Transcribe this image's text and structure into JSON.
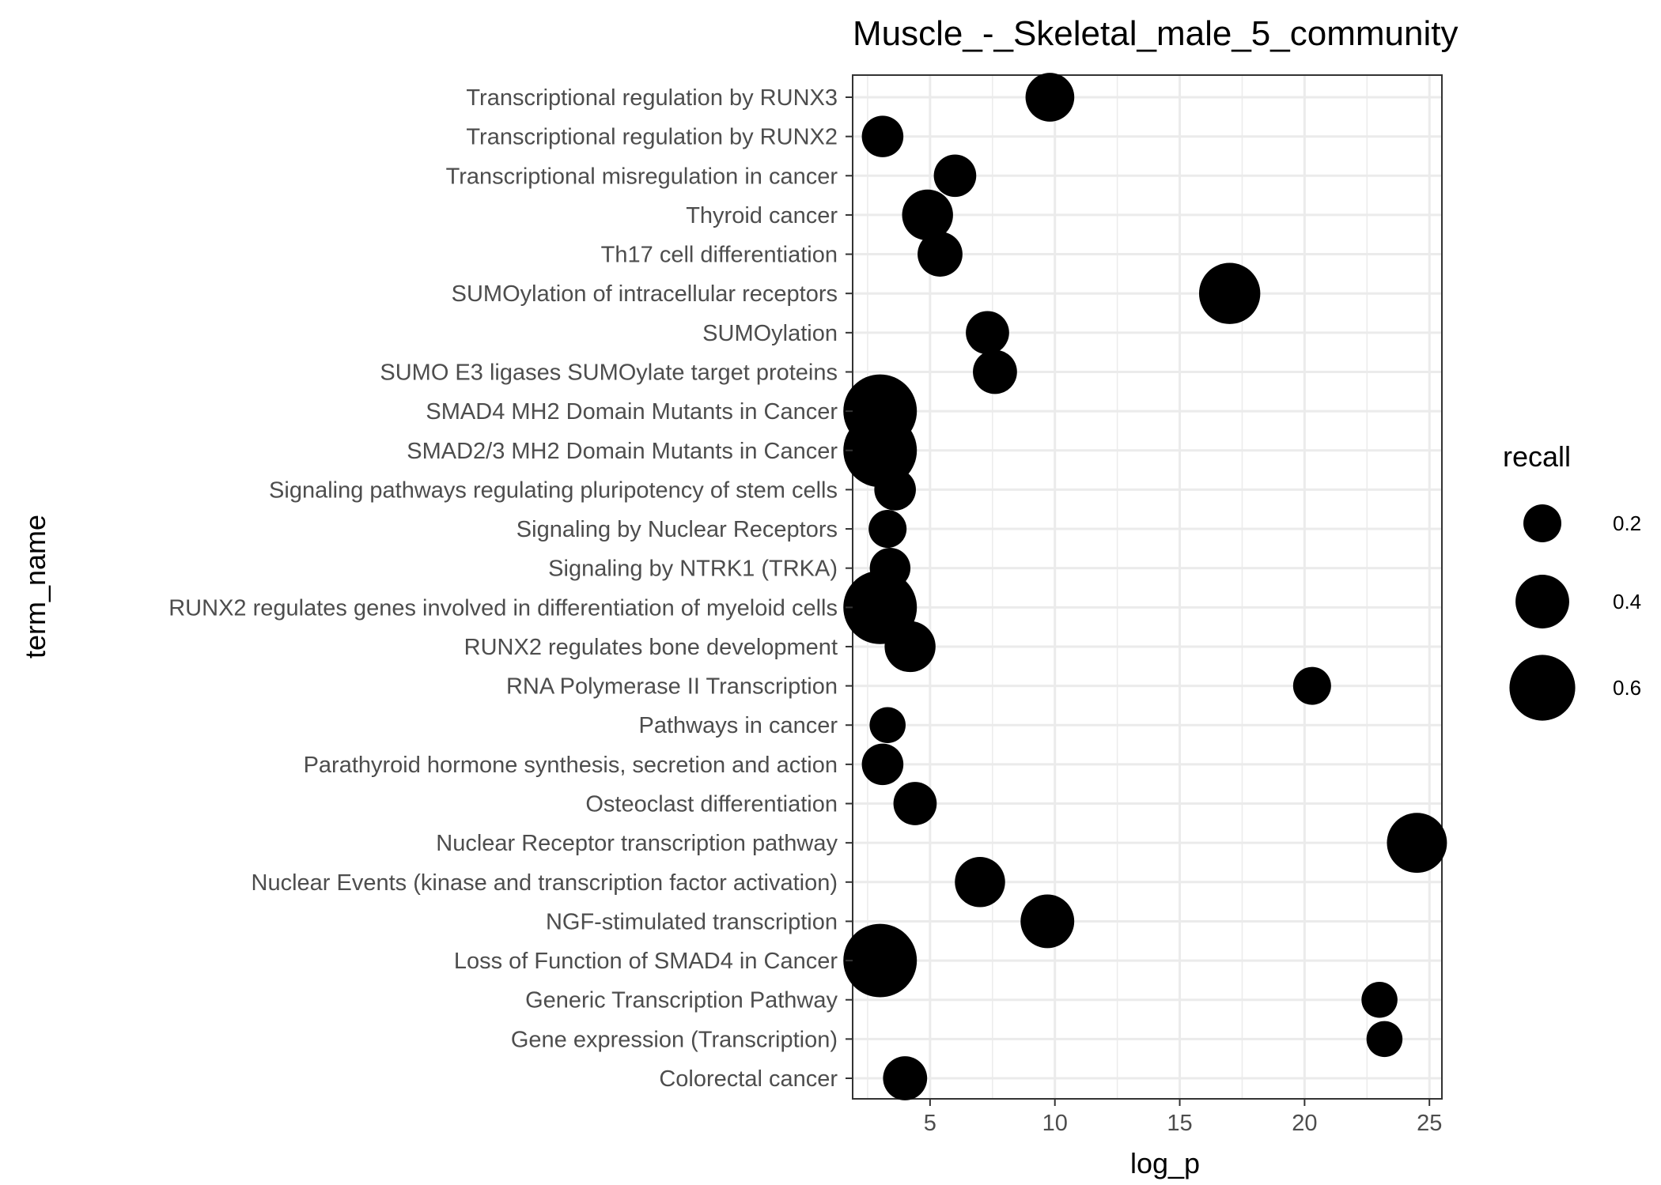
{
  "chart_data": {
    "type": "scatter",
    "title": "Muscle_-_Skeletal_male_5_community",
    "xlabel": "log_p",
    "ylabel": "term_name",
    "xlim": [
      1.9,
      25.5
    ],
    "x_ticks": [
      5,
      10,
      15,
      20,
      25
    ],
    "grid": true,
    "points": [
      {
        "term": "Transcriptional regulation by RUNX3",
        "log_p": 9.8,
        "recall": 0.33
      },
      {
        "term": "Transcriptional regulation by RUNX2",
        "log_p": 3.1,
        "recall": 0.24
      },
      {
        "term": "Transcriptional misregulation in cancer",
        "log_p": 6.0,
        "recall": 0.25
      },
      {
        "term": "Thyroid cancer",
        "log_p": 4.9,
        "recall": 0.36
      },
      {
        "term": "Th17 cell differentiation",
        "log_p": 5.4,
        "recall": 0.28
      },
      {
        "term": "SUMOylation of intracellular receptors",
        "log_p": 17.0,
        "recall": 0.52
      },
      {
        "term": "SUMOylation",
        "log_p": 7.3,
        "recall": 0.26
      },
      {
        "term": "SUMO E3 ligases SUMOylate target proteins",
        "log_p": 7.6,
        "recall": 0.27
      },
      {
        "term": "SMAD4 MH2 Domain Mutants in Cancer",
        "log_p": 3.0,
        "recall": 0.75
      },
      {
        "term": "SMAD2/3 MH2 Domain Mutants in Cancer",
        "log_p": 3.0,
        "recall": 0.75
      },
      {
        "term": "Signaling pathways regulating pluripotency of stem cells",
        "log_p": 3.6,
        "recall": 0.24
      },
      {
        "term": "Signaling by Nuclear Receptors",
        "log_p": 3.3,
        "recall": 0.2
      },
      {
        "term": "Signaling by NTRK1 (TRKA)",
        "log_p": 3.4,
        "recall": 0.23
      },
      {
        "term": "RUNX2 regulates genes involved in differentiation of myeloid cells",
        "log_p": 3.0,
        "recall": 0.75
      },
      {
        "term": "RUNX2 regulates bone development",
        "log_p": 4.2,
        "recall": 0.36
      },
      {
        "term": "RNA Polymerase II Transcription",
        "log_p": 20.3,
        "recall": 0.2
      },
      {
        "term": "Pathways in cancer",
        "log_p": 3.3,
        "recall": 0.18
      },
      {
        "term": "Parathyroid hormone synthesis, secretion and action",
        "log_p": 3.1,
        "recall": 0.24
      },
      {
        "term": "Osteoclast differentiation",
        "log_p": 4.4,
        "recall": 0.26
      },
      {
        "term": "Nuclear Receptor transcription pathway",
        "log_p": 24.5,
        "recall": 0.5
      },
      {
        "term": "Nuclear Events (kinase and transcription factor activation)",
        "log_p": 7.0,
        "recall": 0.35
      },
      {
        "term": "NGF-stimulated transcription",
        "log_p": 9.7,
        "recall": 0.4
      },
      {
        "term": "Loss of Function of SMAD4 in Cancer",
        "log_p": 3.0,
        "recall": 0.75
      },
      {
        "term": "Generic Transcription Pathway",
        "log_p": 23.0,
        "recall": 0.18
      },
      {
        "term": "Gene expression (Transcription)",
        "log_p": 23.2,
        "recall": 0.18
      },
      {
        "term": "Colorectal cancer",
        "log_p": 4.0,
        "recall": 0.27
      }
    ],
    "legend": {
      "title": "recall",
      "placement": "right",
      "entries": [
        {
          "label": "0.2",
          "value": 0.2
        },
        {
          "label": "0.4",
          "value": 0.4
        },
        {
          "label": "0.6",
          "value": 0.6
        }
      ]
    }
  }
}
